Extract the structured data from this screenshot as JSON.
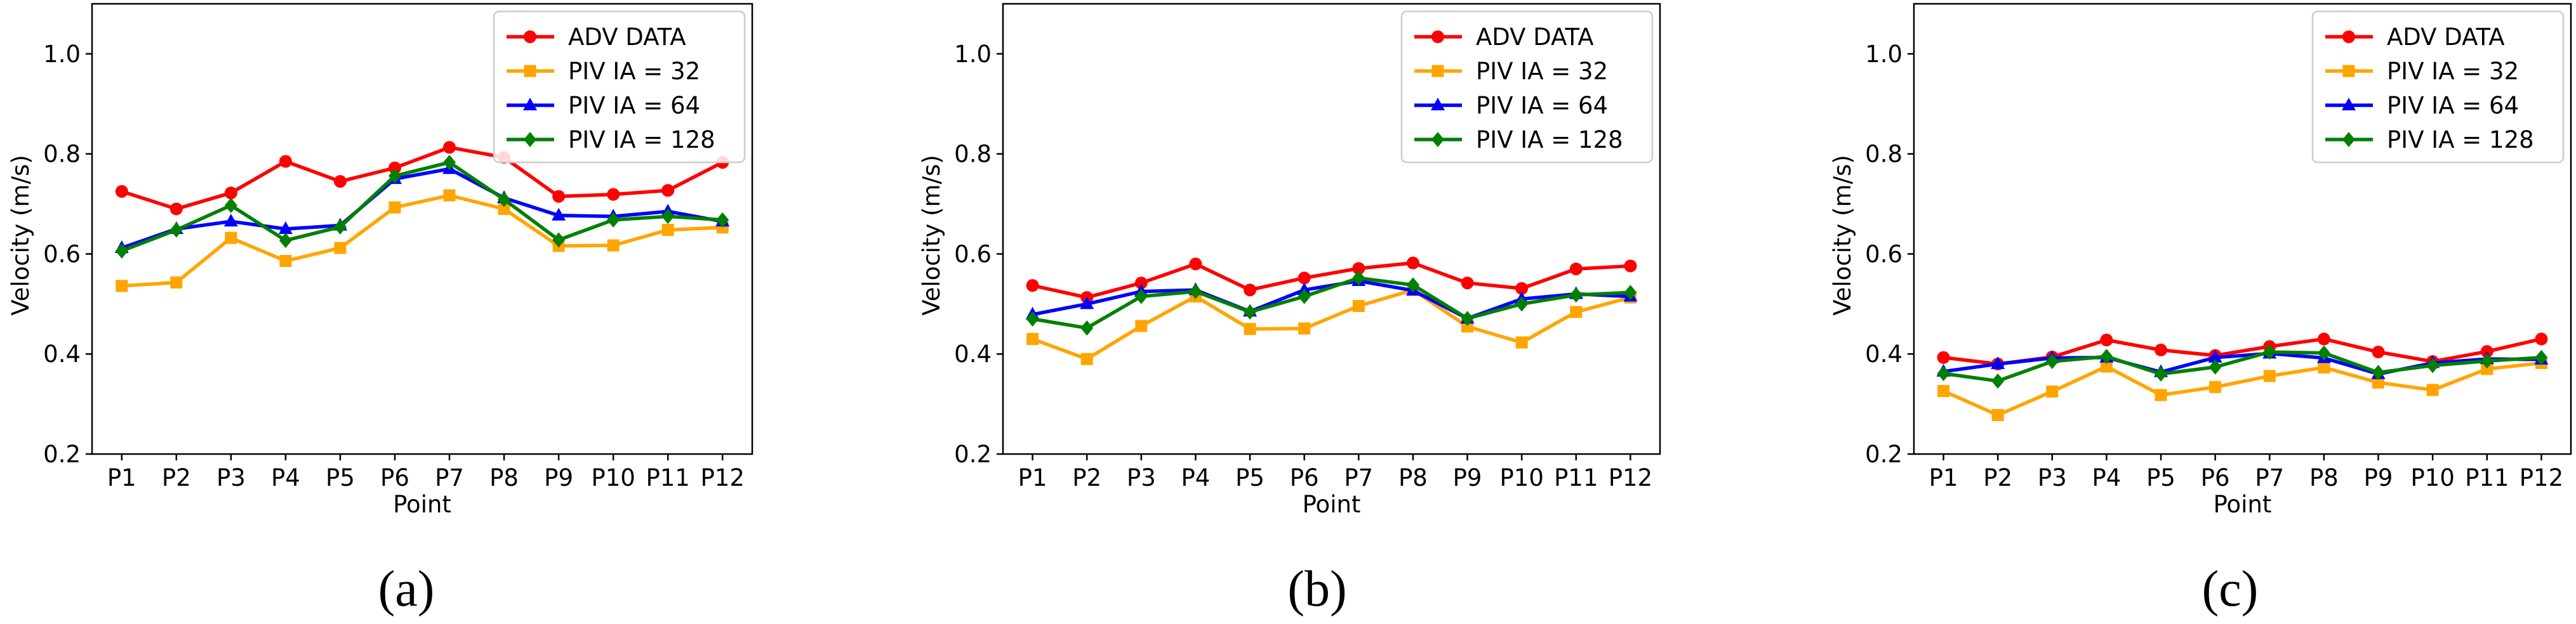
{
  "figure": {
    "panel_labels": [
      "(a)",
      "(b)",
      "(c)"
    ]
  },
  "chart_data": [
    {
      "type": "line",
      "panel": "(a)",
      "xlabel": "Point",
      "ylabel": "Velocity (m/s)",
      "ylim": [
        0.2,
        1.1
      ],
      "yticks": [
        "0.2",
        "0.4",
        "0.6",
        "0.8",
        "1.0"
      ],
      "categories": [
        "P1",
        "P2",
        "P3",
        "P4",
        "P5",
        "P6",
        "P7",
        "P8",
        "P9",
        "P10",
        "P11",
        "P12"
      ],
      "legend_position": "top-right",
      "series": [
        {
          "name": "ADV DATA",
          "color": "#ff0000",
          "marker": "circle",
          "values": [
            0.725,
            0.69,
            0.722,
            0.785,
            0.745,
            0.772,
            0.813,
            0.793,
            0.715,
            0.719,
            0.727,
            0.783
          ]
        },
        {
          "name": "PIV IA = 32",
          "color": "#ffa500",
          "marker": "square",
          "values": [
            0.536,
            0.543,
            0.632,
            0.586,
            0.612,
            0.693,
            0.717,
            0.69,
            0.616,
            0.617,
            0.648,
            0.653
          ]
        },
        {
          "name": "PIV IA = 64",
          "color": "#0000ff",
          "marker": "triangle",
          "values": [
            0.612,
            0.65,
            0.665,
            0.65,
            0.657,
            0.75,
            0.77,
            0.712,
            0.677,
            0.675,
            0.685,
            0.665
          ]
        },
        {
          "name": "PIV IA = 128",
          "color": "#008000",
          "marker": "diamond",
          "values": [
            0.606,
            0.648,
            0.697,
            0.627,
            0.654,
            0.756,
            0.783,
            0.709,
            0.628,
            0.668,
            0.675,
            0.668
          ]
        }
      ]
    },
    {
      "type": "line",
      "panel": "(b)",
      "xlabel": "Point",
      "ylabel": "Velocity (m/s)",
      "ylim": [
        0.2,
        1.1
      ],
      "yticks": [
        "0.2",
        "0.4",
        "0.6",
        "0.8",
        "1.0"
      ],
      "categories": [
        "P1",
        "P2",
        "P3",
        "P4",
        "P5",
        "P6",
        "P7",
        "P8",
        "P9",
        "P10",
        "P11",
        "P12"
      ],
      "legend_position": "top-right",
      "series": [
        {
          "name": "ADV DATA",
          "color": "#ff0000",
          "marker": "circle",
          "values": [
            0.537,
            0.513,
            0.542,
            0.58,
            0.528,
            0.552,
            0.571,
            0.582,
            0.542,
            0.531,
            0.57,
            0.576
          ]
        },
        {
          "name": "PIV IA = 32",
          "color": "#ffa500",
          "marker": "square",
          "values": [
            0.43,
            0.39,
            0.456,
            0.515,
            0.45,
            0.451,
            0.496,
            0.528,
            0.455,
            0.423,
            0.484,
            0.513
          ]
        },
        {
          "name": "PIV IA = 64",
          "color": "#0000ff",
          "marker": "triangle",
          "values": [
            0.479,
            0.5,
            0.525,
            0.528,
            0.485,
            0.528,
            0.546,
            0.527,
            0.471,
            0.51,
            0.52,
            0.515
          ]
        },
        {
          "name": "PIV IA = 128",
          "color": "#008000",
          "marker": "diamond",
          "values": [
            0.47,
            0.452,
            0.515,
            0.525,
            0.484,
            0.515,
            0.552,
            0.538,
            0.471,
            0.5,
            0.518,
            0.523
          ]
        }
      ]
    },
    {
      "type": "line",
      "panel": "(c)",
      "xlabel": "Point",
      "ylabel": "Velocity (m/s)",
      "ylim": [
        0.2,
        1.1
      ],
      "yticks": [
        "0.2",
        "0.4",
        "0.6",
        "0.8",
        "1.0"
      ],
      "categories": [
        "P1",
        "P2",
        "P3",
        "P4",
        "P5",
        "P6",
        "P7",
        "P8",
        "P9",
        "P10",
        "P11",
        "P12"
      ],
      "legend_position": "top-right",
      "series": [
        {
          "name": "ADV DATA",
          "color": "#ff0000",
          "marker": "circle",
          "values": [
            0.393,
            0.38,
            0.394,
            0.428,
            0.408,
            0.397,
            0.415,
            0.43,
            0.404,
            0.385,
            0.405,
            0.43
          ]
        },
        {
          "name": "PIV IA = 32",
          "color": "#ffa500",
          "marker": "square",
          "values": [
            0.326,
            0.278,
            0.325,
            0.375,
            0.318,
            0.334,
            0.356,
            0.373,
            0.343,
            0.328,
            0.37,
            0.382
          ]
        },
        {
          "name": "PIV IA = 64",
          "color": "#0000ff",
          "marker": "triangle",
          "values": [
            0.365,
            0.38,
            0.392,
            0.393,
            0.364,
            0.393,
            0.401,
            0.392,
            0.36,
            0.382,
            0.39,
            0.389
          ]
        },
        {
          "name": "PIV IA = 128",
          "color": "#008000",
          "marker": "diamond",
          "values": [
            0.361,
            0.346,
            0.385,
            0.395,
            0.36,
            0.374,
            0.404,
            0.402,
            0.363,
            0.377,
            0.386,
            0.393
          ]
        }
      ]
    }
  ]
}
